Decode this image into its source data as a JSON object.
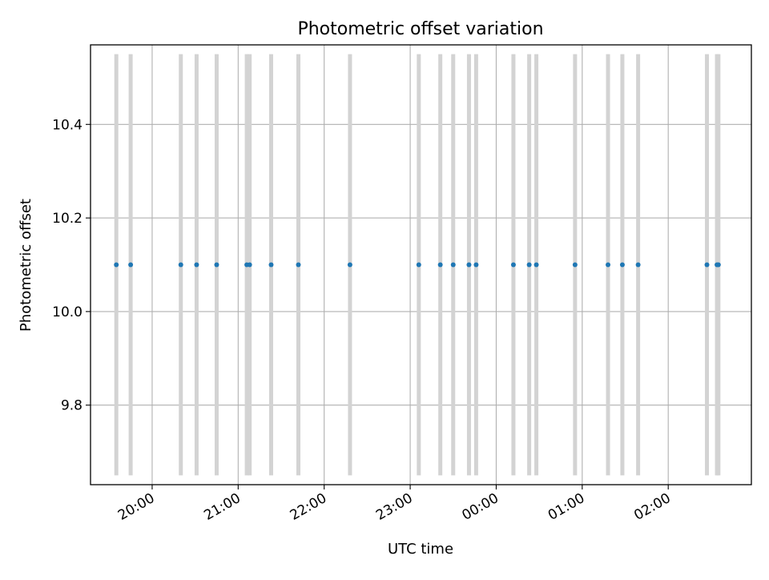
{
  "chart_data": {
    "type": "scatter",
    "title": "Photometric offset variation",
    "xlabel": "UTC time",
    "ylabel": "Photometric offset",
    "x_tick_labels": [
      "20:00",
      "21:00",
      "22:00",
      "23:00",
      "00:00",
      "01:00",
      "02:00"
    ],
    "y_tick_labels": [
      "9.8",
      "10.0",
      "10.2",
      "10.4"
    ],
    "y_ticks": [
      9.8,
      10.0,
      10.2,
      10.4
    ],
    "xlim": [
      "19:17",
      "02:58"
    ],
    "ylim": [
      9.63,
      10.57
    ],
    "grid": true,
    "marker_color": "#1f77b4",
    "band_color": "#d3d3d3",
    "band_range": [
      9.65,
      10.55
    ],
    "points": [
      {
        "time": "19:35",
        "offset": 10.1
      },
      {
        "time": "19:45",
        "offset": 10.1
      },
      {
        "time": "20:20",
        "offset": 10.1
      },
      {
        "time": "20:31",
        "offset": 10.1
      },
      {
        "time": "20:45",
        "offset": 10.1
      },
      {
        "time": "21:06",
        "offset": 10.1
      },
      {
        "time": "21:08",
        "offset": 10.1
      },
      {
        "time": "21:23",
        "offset": 10.1
      },
      {
        "time": "21:42",
        "offset": 10.1
      },
      {
        "time": "22:18",
        "offset": 10.1
      },
      {
        "time": "23:06",
        "offset": 10.1
      },
      {
        "time": "23:21",
        "offset": 10.1
      },
      {
        "time": "23:30",
        "offset": 10.1
      },
      {
        "time": "23:41",
        "offset": 10.1
      },
      {
        "time": "23:46",
        "offset": 10.1
      },
      {
        "time": "00:12",
        "offset": 10.1
      },
      {
        "time": "00:23",
        "offset": 10.1
      },
      {
        "time": "00:28",
        "offset": 10.1
      },
      {
        "time": "00:55",
        "offset": 10.1
      },
      {
        "time": "01:18",
        "offset": 10.1
      },
      {
        "time": "01:28",
        "offset": 10.1
      },
      {
        "time": "01:39",
        "offset": 10.1
      },
      {
        "time": "02:27",
        "offset": 10.1
      },
      {
        "time": "02:34",
        "offset": 10.1
      },
      {
        "time": "02:35",
        "offset": 10.1
      }
    ]
  }
}
